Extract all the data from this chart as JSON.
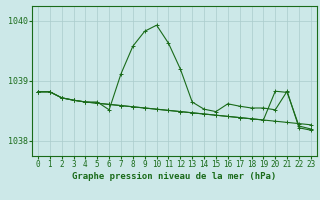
{
  "background_color": "#cce8e8",
  "grid_color": "#aacccc",
  "line_color": "#1a6b1a",
  "title": "Graphe pression niveau de la mer (hPa)",
  "xlim": [
    -0.5,
    23.5
  ],
  "ylim": [
    1037.75,
    1040.25
  ],
  "yticks": [
    1038,
    1039,
    1040
  ],
  "xticks": [
    0,
    1,
    2,
    3,
    4,
    5,
    6,
    7,
    8,
    9,
    10,
    11,
    12,
    13,
    14,
    15,
    16,
    17,
    18,
    19,
    20,
    21,
    22,
    23
  ],
  "s1_y": [
    1038.82,
    1038.82,
    1038.72,
    1038.68,
    1038.65,
    1038.63,
    1038.61,
    1038.59,
    1038.57,
    1038.55,
    1038.53,
    1038.51,
    1038.49,
    1038.47,
    1038.45,
    1038.43,
    1038.41,
    1038.39,
    1038.37,
    1038.35,
    1038.33,
    1038.31,
    1038.29,
    1038.27
  ],
  "s2_y": [
    1038.82,
    1038.82,
    1038.72,
    1038.68,
    1038.65,
    1038.63,
    1038.61,
    1038.59,
    1038.57,
    1038.55,
    1038.53,
    1038.51,
    1038.49,
    1038.47,
    1038.45,
    1038.43,
    1038.41,
    1038.39,
    1038.37,
    1038.35,
    1038.83,
    1038.81,
    1038.25,
    1038.2
  ],
  "s3_y": [
    1038.82,
    1038.82,
    1038.72,
    1038.68,
    1038.65,
    1038.65,
    1038.52,
    1039.12,
    1039.58,
    1039.83,
    1039.93,
    1039.63,
    1039.2,
    1038.65,
    1038.53,
    1038.49,
    1038.62,
    1038.58,
    1038.55,
    1038.55,
    1038.52,
    1038.83,
    1038.22,
    1038.18
  ],
  "title_fontsize": 6.5,
  "tick_fontsize": 5.5,
  "linewidth": 0.8,
  "markersize": 3
}
